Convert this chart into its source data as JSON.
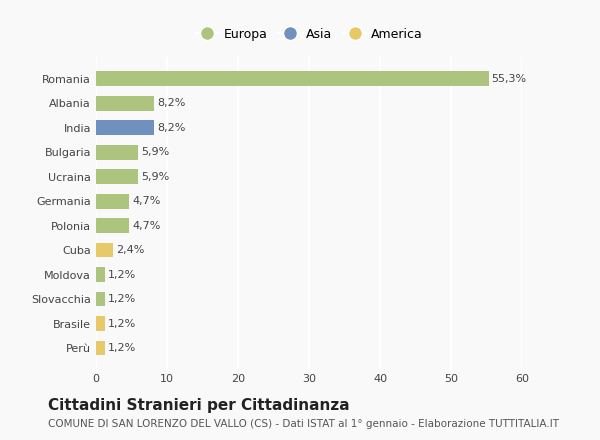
{
  "countries": [
    "Romania",
    "Albania",
    "India",
    "Bulgaria",
    "Ucraina",
    "Germania",
    "Polonia",
    "Cuba",
    "Moldova",
    "Slovacchia",
    "Brasile",
    "Perù"
  ],
  "values": [
    55.3,
    8.2,
    8.2,
    5.9,
    5.9,
    4.7,
    4.7,
    2.4,
    1.2,
    1.2,
    1.2,
    1.2
  ],
  "labels": [
    "55,3%",
    "8,2%",
    "8,2%",
    "5,9%",
    "5,9%",
    "4,7%",
    "4,7%",
    "2,4%",
    "1,2%",
    "1,2%",
    "1,2%",
    "1,2%"
  ],
  "colors": [
    "#adc47e",
    "#adc47e",
    "#7090be",
    "#adc47e",
    "#adc47e",
    "#adc47e",
    "#adc47e",
    "#e8c96a",
    "#adc47e",
    "#adc47e",
    "#e8c96a",
    "#e8c96a"
  ],
  "legend_labels": [
    "Europa",
    "Asia",
    "America"
  ],
  "legend_colors": [
    "#adc47e",
    "#7090be",
    "#e8c96a"
  ],
  "title": "Cittadini Stranieri per Cittadinanza",
  "subtitle": "COMUNE DI SAN LORENZO DEL VALLO (CS) - Dati ISTAT al 1° gennaio - Elaborazione TUTTITALIA.IT",
  "xlim": [
    0,
    60
  ],
  "xticks": [
    0,
    10,
    20,
    30,
    40,
    50,
    60
  ],
  "background_color": "#f9f9f9",
  "grid_color": "#ffffff",
  "bar_height": 0.6,
  "title_fontsize": 11,
  "subtitle_fontsize": 7.5,
  "label_fontsize": 8,
  "tick_fontsize": 8,
  "legend_fontsize": 9
}
